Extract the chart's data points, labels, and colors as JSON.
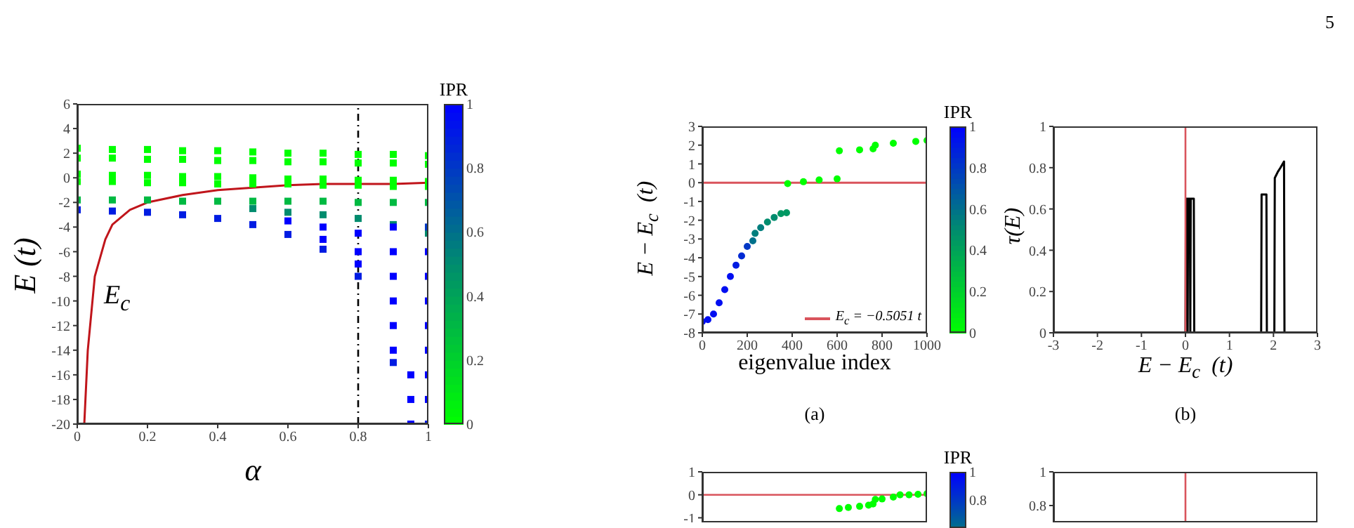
{
  "chart_data": [
    {
      "type": "scatter",
      "xlabel": "α",
      "ylabel": "E (t)",
      "clabel": "IPR",
      "clim": [
        0,
        1
      ],
      "cticks": [
        0,
        0.2,
        0.4,
        0.6,
        0.8,
        1
      ],
      "xlim": [
        0,
        1
      ],
      "xticks": [
        0,
        0.2,
        0.4,
        0.6,
        0.8,
        1
      ],
      "ylim": [
        -20,
        6
      ],
      "yticks": [
        6,
        4,
        2,
        0,
        -2,
        -4,
        -6,
        -8,
        -10,
        -12,
        -14,
        -16,
        -18,
        -20
      ],
      "series": [
        {
          "marker": "square",
          "x": [
            0,
            0.1,
            0.2,
            0.3,
            0.4,
            0.5,
            0.6,
            0.7,
            0.8,
            0.9,
            1,
            0,
            0.1,
            0.2,
            0.3,
            0.4,
            0.5,
            0.6,
            0.7,
            0.8,
            0.9,
            1,
            0,
            0.1,
            0.2,
            0.3,
            0.4,
            0.5,
            0.6,
            0.7,
            0.8,
            0.9,
            1,
            0,
            0.1,
            0.2,
            0.3,
            0.4,
            0.5,
            0.6,
            0.7,
            0.8,
            0.9,
            1,
            0,
            0.1,
            0.2,
            0.3,
            0.4,
            0.5,
            0.6,
            0.7,
            0.8,
            0.9,
            1,
            0,
            0.1,
            0.2,
            0.3,
            0.4,
            0.5,
            0.6,
            0.7,
            0.8,
            0.9,
            1,
            0.5,
            0.6,
            0.7,
            0.8,
            0.9,
            1,
            0.6,
            0.7,
            0.7,
            0.8,
            0.8,
            0.8,
            0.9,
            0.9,
            0.9,
            0.9,
            0.9,
            0.9,
            0.95,
            0.95,
            0.95,
            1,
            1,
            1,
            1,
            1,
            1,
            1,
            1
          ],
          "values": [
            2.4,
            2.3,
            2.3,
            2.2,
            2.2,
            2.1,
            2,
            2,
            1.9,
            1.9,
            1.8,
            1.6,
            1.6,
            1.5,
            1.5,
            1.4,
            1.4,
            1.3,
            1.3,
            1.2,
            1.2,
            1.1,
            0.3,
            0.2,
            0.2,
            0.1,
            0.1,
            0,
            -0.1,
            -0.1,
            -0.2,
            -0.2,
            -0.3,
            -0.3,
            -0.3,
            -0.4,
            -0.4,
            -0.5,
            -0.5,
            -0.5,
            -0.6,
            -0.6,
            -0.7,
            -0.7,
            -1.8,
            -1.8,
            -1.8,
            -1.9,
            -1.9,
            -1.9,
            -1.9,
            -1.9,
            -2,
            -2,
            -2,
            -2.6,
            -2.7,
            -2.8,
            -3,
            -3.3,
            -3.8,
            -4.6,
            -5.8,
            -8,
            -15,
            -20,
            -2.5,
            -2.8,
            -3,
            -3.3,
            -3.8,
            -4.5,
            -3.5,
            -4,
            -5,
            -4.5,
            -6,
            -7,
            -4,
            -6,
            -8,
            -10,
            -12,
            -14,
            -16,
            -18,
            -20,
            -6,
            -8,
            -10,
            -12,
            -14,
            -16,
            -18,
            -4
          ],
          "colors": [
            "#00ff00",
            "#00ff00",
            "#00ff00",
            "#00ff00",
            "#00ff00",
            "#00ff00",
            "#00ff00",
            "#00ff00",
            "#00ff00",
            "#00ff00",
            "#00ff00",
            "#00ff00",
            "#00ff00",
            "#00ff00",
            "#00ff00",
            "#00ff00",
            "#00ff00",
            "#00ff00",
            "#00ff00",
            "#00ff00",
            "#00ff00",
            "#00ff00",
            "#00ff00",
            "#00ff00",
            "#00ff00",
            "#00ff00",
            "#00ff00",
            "#00ff00",
            "#00ff00",
            "#00ff00",
            "#00ff00",
            "#00ff00",
            "#00ff00",
            "#00ff00",
            "#00ff00",
            "#00ff00",
            "#00ff00",
            "#00ff00",
            "#00ff00",
            "#00ff00",
            "#00ff00",
            "#00ff00",
            "#00ff00",
            "#00ff00",
            "#00ba42",
            "#00ba42",
            "#00ba42",
            "#00ba42",
            "#00ba42",
            "#00ba42",
            "#00ba42",
            "#00ba42",
            "#00ba42",
            "#00ba42",
            "#00ba42",
            "#001ce2",
            "#001ce2",
            "#001ce2",
            "#001ce2",
            "#001ce2",
            "#001ce2",
            "#001ce2",
            "#001ce2",
            "#001ce2",
            "#001ce2",
            "#001ce2",
            "#008c6e",
            "#008c6e",
            "#008c6e",
            "#008c6e",
            "#008c6e",
            "#008c6e",
            "#0000ff",
            "#0000ff",
            "#0000ff",
            "#0000ff",
            "#0000ff",
            "#0000ff",
            "#0000ff",
            "#0000ff",
            "#0000ff",
            "#0000ff",
            "#0000ff",
            "#0000ff",
            "#0000ff",
            "#0000ff",
            "#0000ff",
            "#0000ff",
            "#0000ff",
            "#0000ff",
            "#0000ff",
            "#0000ff",
            "#0000ff",
            "#0000ff",
            "#0038c5"
          ]
        },
        {
          "type": "line",
          "color": "#c0151b",
          "x": [
            0.02,
            0.03,
            0.05,
            0.08,
            0.1,
            0.15,
            0.2,
            0.3,
            0.4,
            0.5,
            0.6,
            0.7,
            0.8,
            0.9,
            1
          ],
          "values": [
            -20,
            -14,
            -8,
            -5,
            -3.8,
            -2.6,
            -2,
            -1.4,
            -1,
            -0.8,
            -0.6,
            -0.5,
            -0.5,
            -0.5,
            -0.4
          ]
        }
      ],
      "ref_lines": [
        {
          "axis": "x",
          "value": 0.8,
          "color": "#000000",
          "line_style": "dashed"
        }
      ],
      "annotations": [
        "E$_{c}$"
      ]
    },
    {
      "type": "scatter",
      "xlabel": "eigenvalue index",
      "ylabel": "E − E$_{c}$  (t)",
      "clabel": "IPR",
      "clim": [
        0,
        1
      ],
      "cticks": [
        0,
        0.2,
        0.4,
        0.6,
        0.8,
        1
      ],
      "xlim": [
        0,
        1000
      ],
      "xticks": [
        0,
        200,
        400,
        600,
        800,
        1000
      ],
      "ylim": [
        -8,
        3
      ],
      "yticks": [
        3,
        2,
        1,
        0,
        -1,
        -2,
        -3,
        -4,
        -5,
        -6,
        -7,
        -8
      ],
      "legend": "bottom right",
      "series": [
        {
          "marker": "circle",
          "x": [
            0,
            25,
            50,
            75,
            100,
            125,
            150,
            175,
            200,
            225,
            235,
            260,
            290,
            320,
            350,
            375,
            380,
            450,
            520,
            600,
            610,
            700,
            760,
            770,
            850,
            950,
            1000
          ],
          "values": [
            -7.4,
            -7.3,
            -7,
            -6.4,
            -5.7,
            -5,
            -4.4,
            -3.9,
            -3.4,
            -3.1,
            -2.7,
            -2.4,
            -2.1,
            -1.85,
            -1.65,
            -1.6,
            -0.05,
            0.05,
            0.15,
            0.2,
            1.7,
            1.75,
            1.8,
            2,
            2.1,
            2.2,
            2.25
          ],
          "colors": [
            "#000ef1",
            "#000ef1",
            "#000ef1",
            "#000ef1",
            "#000ef1",
            "#000ef1",
            "#001ce2",
            "#002ad4",
            "#0038c5",
            "#00708b",
            "#007e7d",
            "#007e7d",
            "#008c6e",
            "#008c6e",
            "#009863",
            "#009863",
            "#00ff00",
            "#00ff00",
            "#00ff00",
            "#00ff00",
            "#00ff00",
            "#00ff00",
            "#00ff00",
            "#00ff00",
            "#00ff00",
            "#00ff00",
            "#00ff00"
          ]
        },
        {
          "type": "line",
          "name": "E$_{c}$ = −0.5051 t",
          "color": "#d9545c",
          "x": [
            0,
            1000
          ],
          "values": [
            0,
            0
          ]
        }
      ],
      "annotations": [
        "(a)"
      ]
    },
    {
      "type": "line",
      "xlabel": "E − E$_{c}$  (t)",
      "ylabel": "τ(E)",
      "xlim": [
        -3,
        3
      ],
      "xticks": [
        -3,
        -2,
        -1,
        0,
        1,
        2,
        3
      ],
      "ylim": [
        0,
        1
      ],
      "yticks": [
        0,
        0.2,
        0.4,
        0.6,
        0.8,
        1
      ],
      "series": [
        {
          "color": "#000000",
          "x": [
            -3,
            0,
            0.01,
            0.04,
            0.05,
            0.06,
            0.1,
            0.11,
            0.12,
            0.19,
            0.2,
            1.72,
            1.73,
            1.84,
            1.85,
            2.02,
            2.03,
            2.1,
            2.16,
            2.24,
            2.25,
            3
          ],
          "values": [
            0,
            0,
            0.65,
            0.65,
            0,
            0.65,
            0.65,
            0,
            0.65,
            0.65,
            0,
            0,
            0.67,
            0.67,
            0,
            0,
            0.75,
            0.78,
            0.8,
            0.83,
            0,
            0
          ]
        }
      ],
      "ref_lines": [
        {
          "axis": "x",
          "value": 0,
          "color": "#d9545c"
        }
      ],
      "annotations": [
        "(b)",
        "5"
      ]
    },
    {
      "type": "scatter",
      "clabel": "IPR",
      "clim": [
        0.6,
        1
      ],
      "cticks": [
        0.8,
        1
      ],
      "xlim": [
        0,
        1000
      ],
      "ylim": [
        -1.2,
        1
      ],
      "yticks": [
        1,
        0,
        -1
      ],
      "tick_labels": "y",
      "series": [
        {
          "marker": "circle",
          "color": "#00ff00",
          "x": [
            610,
            650,
            700,
            740,
            760,
            770,
            800,
            850,
            880,
            920,
            960,
            1000
          ],
          "values": [
            -0.6,
            -0.55,
            -0.5,
            -0.45,
            -0.4,
            -0.2,
            -0.18,
            -0.1,
            0,
            0,
            0.02,
            0.05
          ]
        }
      ],
      "ref_lines": [
        {
          "axis": "y",
          "value": 0,
          "color": "#d9545c"
        }
      ]
    },
    {
      "type": "line",
      "xlim": [
        -3,
        3
      ],
      "ylim": [
        0.7,
        1
      ],
      "yticks": [
        1,
        0.8
      ],
      "tick_labels": "y",
      "ref_lines": [
        {
          "axis": "x",
          "value": 0,
          "color": "#d9545c"
        }
      ]
    }
  ]
}
